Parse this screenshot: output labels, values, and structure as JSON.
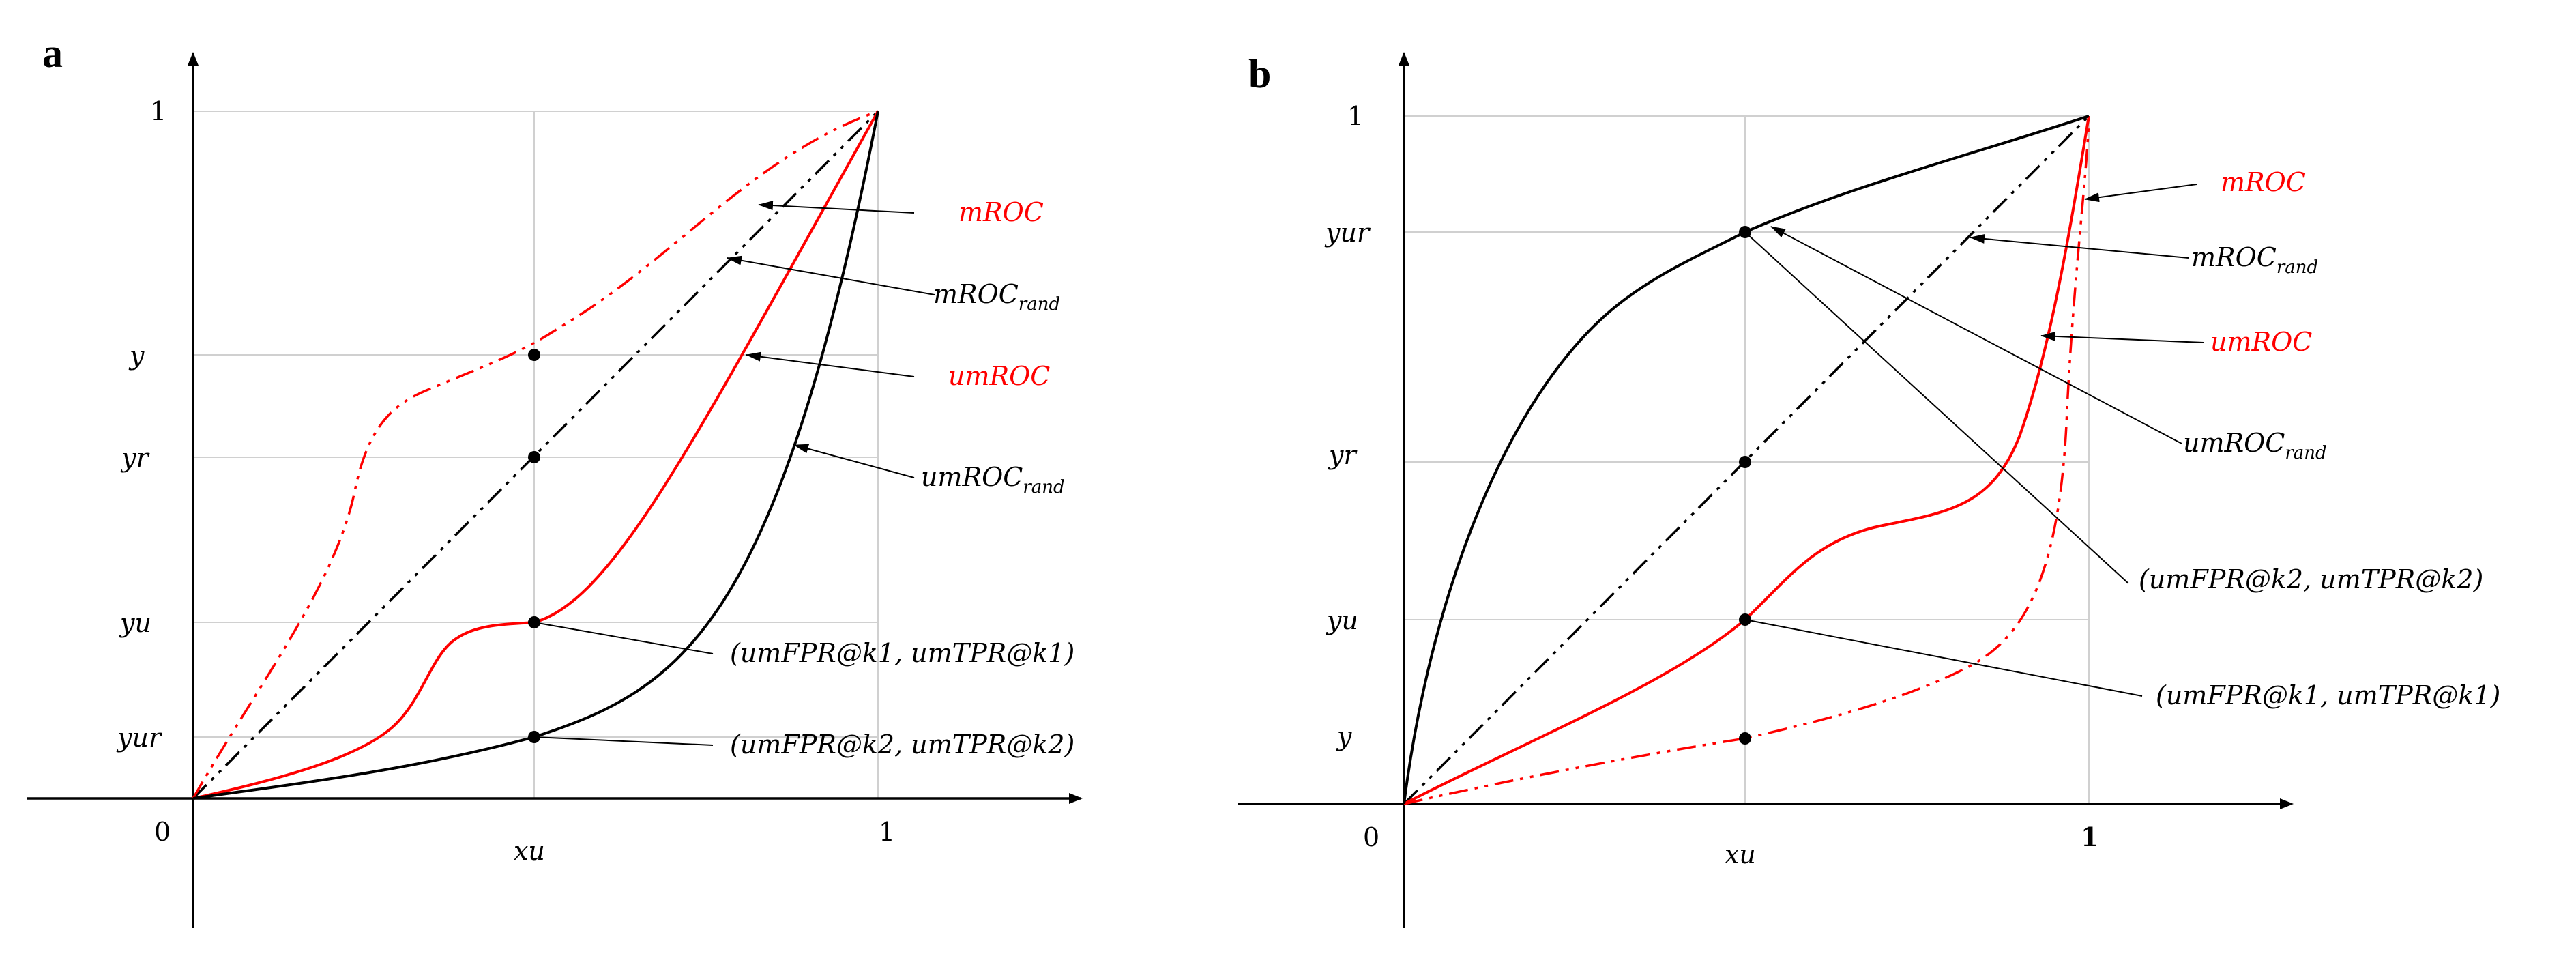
{
  "panel_a": {
    "panel_label": "a",
    "y_ticks": {
      "one": "1",
      "y": "y",
      "yr": "yr",
      "yu": "yu",
      "yur": "yur"
    },
    "x_ticks": {
      "zero": "0",
      "xu": "xu",
      "one": "1"
    },
    "labels": {
      "mroc": "mROC",
      "mroc_rand_base": "mROC",
      "mroc_rand_sub": "rand",
      "umroc": "umROC",
      "umroc_rand_base": "umROC",
      "umroc_rand_sub": "rand",
      "point1": "(umFPR@k1, umTPR@k1)",
      "point2": "(umFPR@k2, umTPR@k2)"
    }
  },
  "panel_b": {
    "panel_label": "b",
    "y_ticks": {
      "one": "1",
      "yur": "yur",
      "yr": "yr",
      "yu": "yu",
      "y": "y"
    },
    "x_ticks": {
      "zero": "0",
      "xu": "xu",
      "one": "1"
    },
    "labels": {
      "mroc": "mROC",
      "mroc_rand_base": "mROC",
      "mroc_rand_sub": "rand",
      "umroc": "umROC",
      "umroc_rand_base": "umROC",
      "umroc_rand_sub": "rand",
      "point2": "(umFPR@k2, umTPR@k2)",
      "point1": "(umFPR@k1, umTPR@k1)"
    }
  },
  "colors": {
    "red_curve": "#ff0000",
    "black_curve": "#000000",
    "grid": "#d0d0d0"
  }
}
